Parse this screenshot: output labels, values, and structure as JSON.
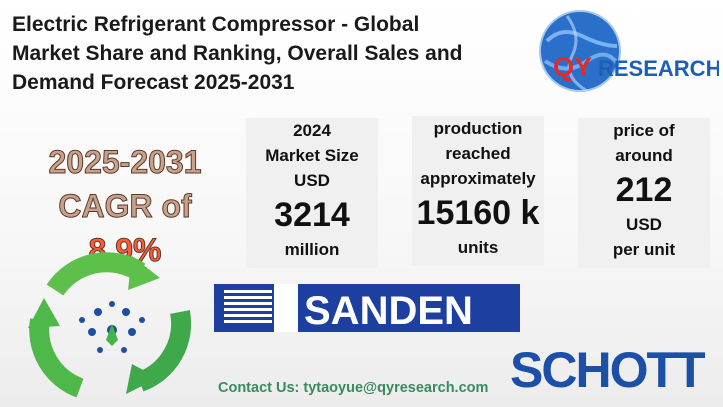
{
  "title": {
    "line1": "Electric Refrigerant Compressor - Global",
    "line2": "Market Share and Ranking, Overall Sales and",
    "line3": "Demand Forecast 2025-2031"
  },
  "logo": {
    "brand_text": "QYRESEARCH",
    "accent": "#e12a2a",
    "brand_blue": "#1d5fb5"
  },
  "cagr": {
    "period": "2025-2031",
    "label": "CAGR of",
    "value": "8.9%"
  },
  "stats": {
    "market": {
      "l1": "2024",
      "l2": "Market Size",
      "l3": "USD",
      "value": "3214",
      "unit": "million"
    },
    "production": {
      "l1": "production",
      "l2": "reached",
      "l3": "approximately",
      "value": "15160 k",
      "unit": "units"
    },
    "price": {
      "l1": "price of",
      "l2": "around",
      "value": "212",
      "l3": "USD",
      "unit": "per unit"
    }
  },
  "brands": {
    "sanden": "SANDEN",
    "schott": "SCHOTT"
  },
  "contact": "Contact Us: tytaoyue@qyresearch.com",
  "icons": [
    "recycle-arrows-icon",
    "globe-icon"
  ],
  "colors": {
    "title": "#1a1a1a",
    "cagr_value": "#ff5a36",
    "sanden_blue": "#1c3fa0",
    "schott_blue": "#1b4fa8",
    "contact_green": "#3a8a5f"
  }
}
